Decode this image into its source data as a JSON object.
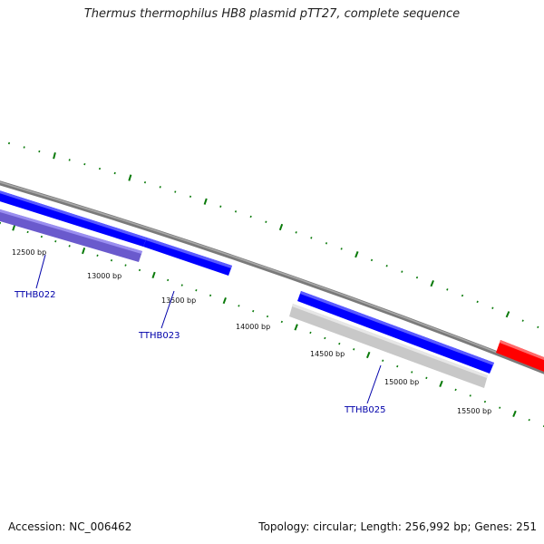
{
  "title": "Thermus thermophilus HB8 plasmid pTT27, complete sequence",
  "footer": {
    "accession": "Accession: NC_006462",
    "summary": "Topology: circular; Length: 256,992 bp; Genes: 251"
  },
  "colors": {
    "backbone": "#7a7a7a",
    "ticks": "#0a7a0a",
    "gene_forward": "#0000ff",
    "gene_reverse": "#6a5acd",
    "gene_other": "#c8c8c8",
    "gene_red": "#ff0000",
    "label_text": "#0000aa"
  },
  "position_labels": [
    "12500 bp",
    "13000 bp",
    "13500 bp",
    "14000 bp",
    "14500 bp",
    "15000 bp",
    "15500 bp"
  ],
  "gene_labels": [
    "TTHB022",
    "TTHB023",
    "TTHB025"
  ]
}
